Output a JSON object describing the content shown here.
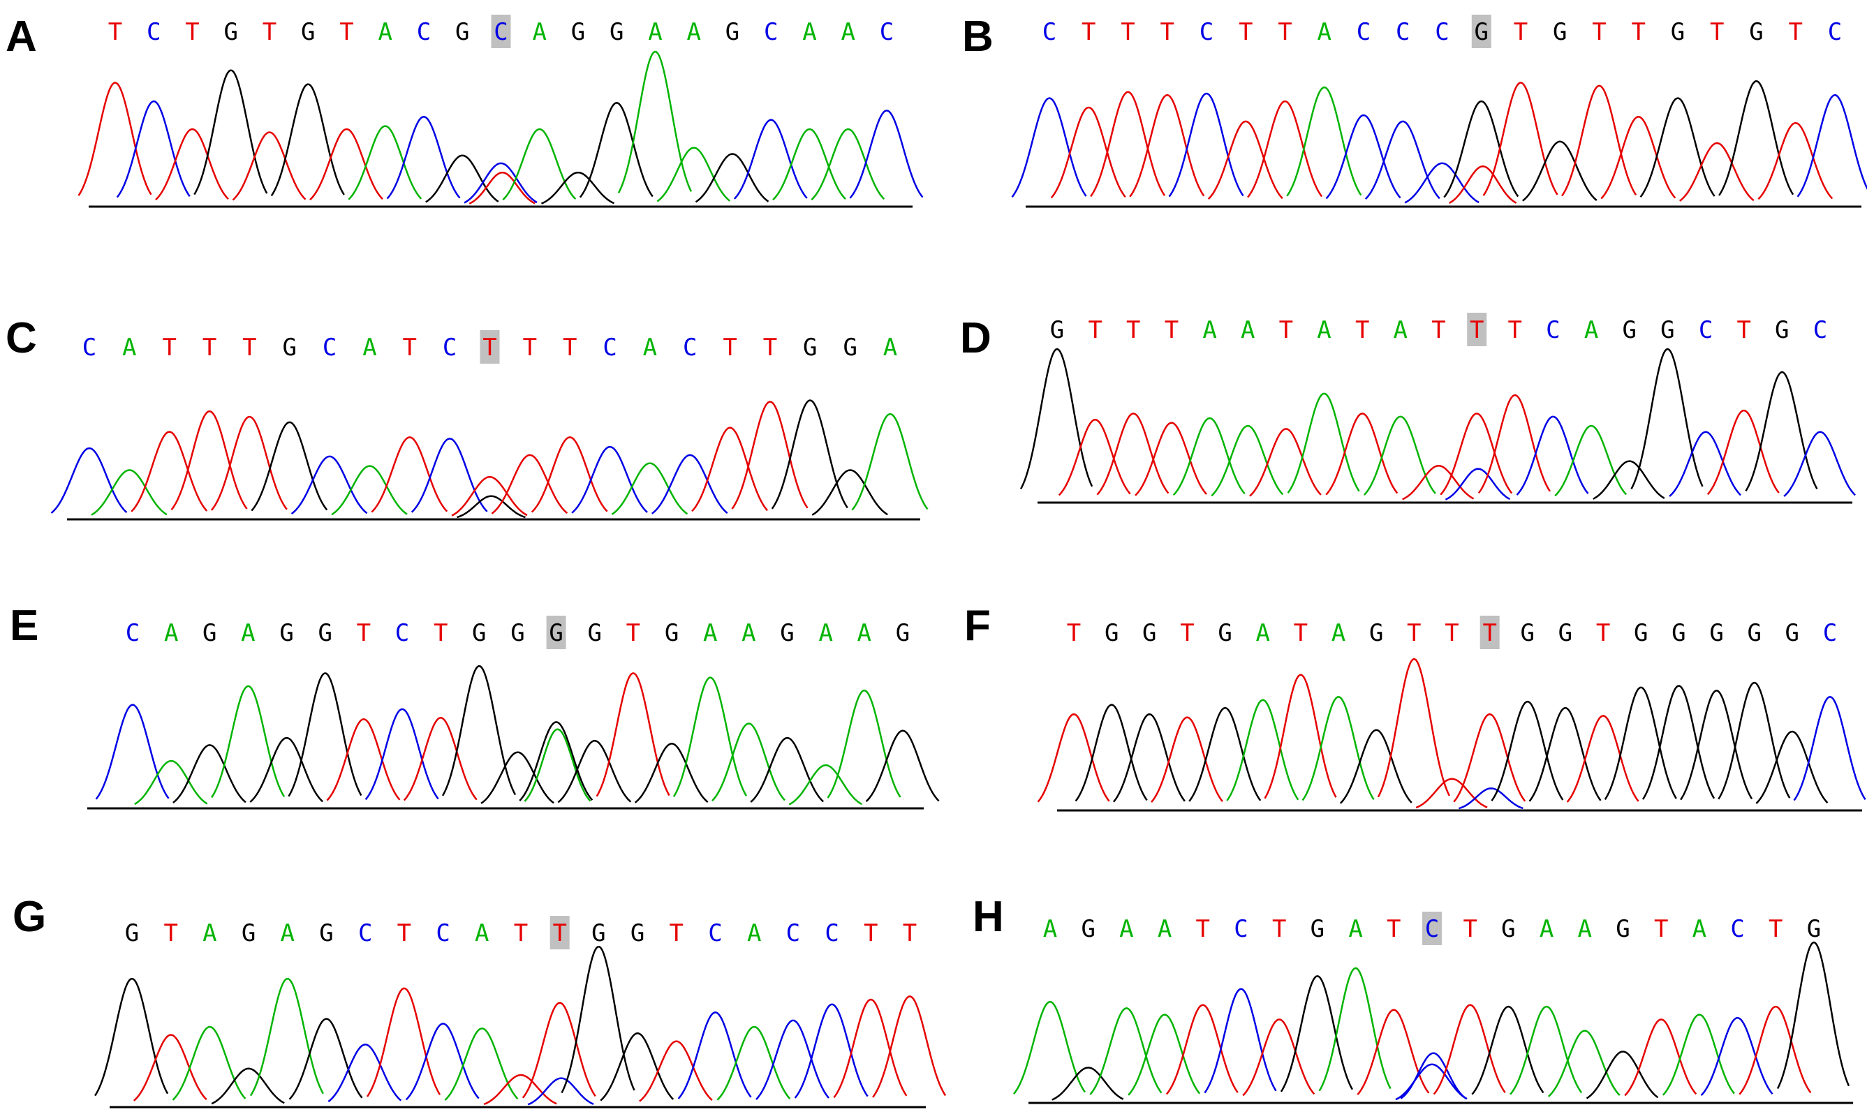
{
  "colors": {
    "A": "#00b400",
    "C": "#0000e6",
    "G": "#000000",
    "T": "#e60000",
    "highlight": "#c0c0c0"
  },
  "panels": [
    {
      "label": "A",
      "bases": "TCTGTGTACGCAGGAAGCAAC",
      "highlight": 10,
      "heights": [
        0.8,
        0.68,
        0.5,
        0.88,
        0.48,
        0.79,
        0.5,
        0.52,
        0.58,
        0.33,
        0.28,
        0.5,
        0.22,
        0.67,
        1.0,
        0.38,
        0.34,
        0.56,
        0.5,
        0.5,
        0.62
      ],
      "secondary": {
        "base": "T",
        "height": 0.22
      }
    },
    {
      "label": "B",
      "bases": "CTTTCTTACCCGTGTTGTGTC",
      "highlight": 11,
      "heights": [
        0.7,
        0.64,
        0.74,
        0.72,
        0.73,
        0.55,
        0.68,
        0.77,
        0.59,
        0.55,
        0.28,
        0.68,
        0.8,
        0.42,
        0.78,
        0.58,
        0.7,
        0.41,
        0.81,
        0.54,
        0.72
      ],
      "secondary": {
        "base": "T",
        "height": 0.26
      }
    },
    {
      "label": "C",
      "bases": "CATTTGCATCTTTCACTTGGA",
      "highlight": 10,
      "heights": [
        0.52,
        0.36,
        0.64,
        0.79,
        0.75,
        0.71,
        0.46,
        0.39,
        0.6,
        0.59,
        0.31,
        0.47,
        0.6,
        0.53,
        0.41,
        0.47,
        0.67,
        0.86,
        0.87,
        0.36,
        0.77
      ],
      "secondary": {
        "base": "G",
        "height": 0.17
      }
    },
    {
      "label": "D",
      "bases": "GTTTAATATATTTCAGGCTGC",
      "highlight": 11,
      "heights": [
        1.0,
        0.54,
        0.58,
        0.52,
        0.55,
        0.5,
        0.48,
        0.71,
        0.58,
        0.56,
        0.24,
        0.58,
        0.7,
        0.56,
        0.5,
        0.27,
        1.0,
        0.46,
        0.6,
        0.85,
        0.46
      ],
      "secondary": {
        "base": "C",
        "height": 0.22
      }
    },
    {
      "label": "E",
      "bases": "CAGAGGTCTGGGGTGAAGAAG",
      "highlight": 11,
      "heights": [
        0.72,
        0.33,
        0.44,
        0.85,
        0.49,
        0.94,
        0.62,
        0.69,
        0.63,
        0.99,
        0.39,
        0.6,
        0.47,
        0.94,
        0.45,
        0.91,
        0.59,
        0.49,
        0.3,
        0.82,
        0.54
      ],
      "secondary": {
        "base": "A",
        "height": 0.55
      }
    },
    {
      "label": "F",
      "bases": "TGGTGATAGTTTGGTGGGGGC",
      "highlight": 11,
      "heights": [
        0.61,
        0.67,
        0.61,
        0.59,
        0.65,
        0.7,
        0.86,
        0.72,
        0.51,
        0.96,
        0.2,
        0.61,
        0.69,
        0.65,
        0.6,
        0.78,
        0.79,
        0.76,
        0.81,
        0.5,
        0.72
      ],
      "secondary": {
        "base": "C",
        "height": 0.14
      }
    },
    {
      "label": "G",
      "bases": "GTAGAGCTCATTGGTCACCTT",
      "highlight": 11,
      "heights": [
        0.8,
        0.45,
        0.5,
        0.24,
        0.8,
        0.55,
        0.39,
        0.74,
        0.52,
        0.49,
        0.2,
        0.65,
        1.0,
        0.46,
        0.41,
        0.59,
        0.5,
        0.54,
        0.64,
        0.67,
        0.69
      ],
      "secondary": {
        "base": "C",
        "height": 0.18
      }
    },
    {
      "label": "H",
      "bases": "AGAATCTGATCTGAAGTACTG",
      "highlight": 10,
      "heights": [
        0.63,
        0.22,
        0.59,
        0.55,
        0.61,
        0.71,
        0.52,
        0.79,
        0.84,
        0.58,
        0.24,
        0.61,
        0.6,
        0.6,
        0.45,
        0.32,
        0.52,
        0.55,
        0.53,
        0.6,
        1.0
      ],
      "secondary": {
        "base": "C",
        "height": 0.31
      }
    }
  ]
}
